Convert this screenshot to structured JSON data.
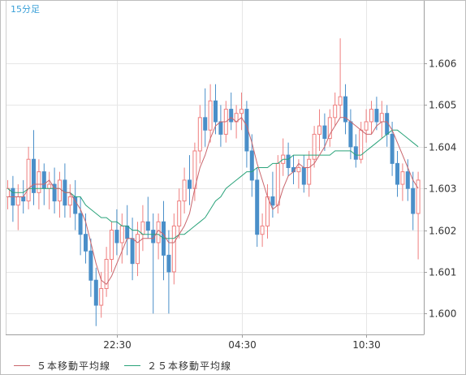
{
  "chart_data": {
    "type": "candlestick",
    "timeframe_label": "15分足",
    "x_tick_labels": [
      {
        "label": "22:30",
        "index": 21
      },
      {
        "label": "04:30",
        "index": 45
      },
      {
        "label": "10:30",
        "index": 69
      }
    ],
    "ylim": [
      1.5995,
      1.6075
    ],
    "yticks": [
      "1.600",
      "1.601",
      "1.602",
      "1.603",
      "1.604",
      "1.605",
      "1.606"
    ],
    "grid": true,
    "colors": {
      "up": "#ef7f7f",
      "down": "#4a8fc9",
      "ma5": "#c9666d",
      "ma25": "#2aa37a"
    },
    "legend_position": "bottom-left",
    "legend": [
      {
        "name": "５本移動平均線",
        "color": "#c9666d"
      },
      {
        "name": "２５本移動平均線",
        "color": "#2aa37a"
      }
    ],
    "candles": [
      [
        1.6028,
        1.6032,
        1.6025,
        1.603
      ],
      [
        1.603,
        1.6033,
        1.6022,
        1.6026
      ],
      [
        1.6026,
        1.6031,
        1.602,
        1.6028
      ],
      [
        1.6028,
        1.6032,
        1.6024,
        1.6027
      ],
      [
        1.6027,
        1.604,
        1.6025,
        1.6037
      ],
      [
        1.6037,
        1.6044,
        1.6026,
        1.6029
      ],
      [
        1.6029,
        1.6037,
        1.6025,
        1.6034
      ],
      [
        1.6034,
        1.6036,
        1.6026,
        1.603
      ],
      [
        1.603,
        1.6034,
        1.6025,
        1.6031
      ],
      [
        1.6031,
        1.6035,
        1.6024,
        1.6027
      ],
      [
        1.6027,
        1.6034,
        1.6023,
        1.6032
      ],
      [
        1.6032,
        1.6036,
        1.6023,
        1.6026
      ],
      [
        1.6026,
        1.6031,
        1.6023,
        1.6028
      ],
      [
        1.6028,
        1.6032,
        1.602,
        1.6024
      ],
      [
        1.6024,
        1.6028,
        1.6014,
        1.6019
      ],
      [
        1.6019,
        1.6024,
        1.6012,
        1.6015
      ],
      [
        1.6015,
        1.6018,
        1.6004,
        1.6008
      ],
      [
        1.6008,
        1.6011,
        1.5997,
        1.6002
      ],
      [
        1.6002,
        1.601,
        1.5999,
        1.6006
      ],
      [
        1.6006,
        1.6016,
        1.6004,
        1.6013
      ],
      [
        1.6013,
        1.6022,
        1.601,
        1.602
      ],
      [
        1.602,
        1.6025,
        1.6014,
        1.6017
      ],
      [
        1.6017,
        1.6024,
        1.6012,
        1.6021
      ],
      [
        1.6021,
        1.6026,
        1.6014,
        1.6018
      ],
      [
        1.6018,
        1.6023,
        1.6008,
        1.6012
      ],
      [
        1.6012,
        1.6022,
        1.6009,
        1.6019
      ],
      [
        1.6019,
        1.6026,
        1.6015,
        1.6022
      ],
      [
        1.6022,
        1.6028,
        1.6018,
        1.602
      ],
      [
        1.602,
        1.6024,
        1.6,
        1.6017
      ],
      [
        1.6017,
        1.6024,
        1.6013,
        1.6022
      ],
      [
        1.6022,
        1.6027,
        1.6008,
        1.6014
      ],
      [
        1.6014,
        1.602,
        1.6,
        1.601
      ],
      [
        1.601,
        1.6024,
        1.6007,
        1.6021
      ],
      [
        1.6021,
        1.603,
        1.6018,
        1.6027
      ],
      [
        1.6027,
        1.6035,
        1.6024,
        1.6032
      ],
      [
        1.6032,
        1.6038,
        1.6026,
        1.603
      ],
      [
        1.603,
        1.6041,
        1.6027,
        1.6039
      ],
      [
        1.6039,
        1.605,
        1.6036,
        1.6047
      ],
      [
        1.6047,
        1.6054,
        1.604,
        1.6044
      ],
      [
        1.6044,
        1.6055,
        1.6041,
        1.6051
      ],
      [
        1.6051,
        1.6055,
        1.6043,
        1.6046
      ],
      [
        1.6046,
        1.605,
        1.604,
        1.6043
      ],
      [
        1.6043,
        1.6051,
        1.6041,
        1.6049
      ],
      [
        1.6049,
        1.6053,
        1.6044,
        1.6046
      ],
      [
        1.6046,
        1.605,
        1.6042,
        1.6048
      ],
      [
        1.6048,
        1.6053,
        1.6044,
        1.6049
      ],
      [
        1.6049,
        1.6051,
        1.6035,
        1.6039
      ],
      [
        1.6039,
        1.6043,
        1.6028,
        1.6032
      ],
      [
        1.6032,
        1.6035,
        1.6016,
        1.6019
      ],
      [
        1.6019,
        1.6024,
        1.6016,
        1.6021
      ],
      [
        1.6021,
        1.6031,
        1.6018,
        1.6028
      ],
      [
        1.6028,
        1.6034,
        1.6023,
        1.6026
      ],
      [
        1.6026,
        1.6038,
        1.6024,
        1.6036
      ],
      [
        1.6036,
        1.6042,
        1.6033,
        1.6038
      ],
      [
        1.6038,
        1.6041,
        1.6033,
        1.6035
      ],
      [
        1.6035,
        1.6038,
        1.6031,
        1.6034
      ],
      [
        1.6034,
        1.6037,
        1.603,
        1.6035
      ],
      [
        1.6035,
        1.6038,
        1.6029,
        1.6031
      ],
      [
        1.6031,
        1.6039,
        1.6028,
        1.6037
      ],
      [
        1.6037,
        1.6045,
        1.6035,
        1.6043
      ],
      [
        1.6043,
        1.6049,
        1.6039,
        1.6045
      ],
      [
        1.6045,
        1.6048,
        1.6039,
        1.6042
      ],
      [
        1.6042,
        1.6049,
        1.604,
        1.6047
      ],
      [
        1.6047,
        1.6053,
        1.6045,
        1.605
      ],
      [
        1.605,
        1.6066,
        1.6047,
        1.6052
      ],
      [
        1.6052,
        1.6055,
        1.6043,
        1.6046
      ],
      [
        1.6046,
        1.6049,
        1.6037,
        1.604
      ],
      [
        1.604,
        1.6043,
        1.6035,
        1.6037
      ],
      [
        1.6037,
        1.6046,
        1.6036,
        1.6044
      ],
      [
        1.6044,
        1.6049,
        1.6041,
        1.6046
      ],
      [
        1.6046,
        1.6051,
        1.6043,
        1.6049
      ],
      [
        1.6049,
        1.6052,
        1.6044,
        1.6046
      ],
      [
        1.6046,
        1.6051,
        1.6042,
        1.6048
      ],
      [
        1.6048,
        1.605,
        1.604,
        1.6043
      ],
      [
        1.6043,
        1.6046,
        1.6033,
        1.6036
      ],
      [
        1.6036,
        1.6039,
        1.6028,
        1.6031
      ],
      [
        1.6031,
        1.6036,
        1.6027,
        1.6034
      ],
      [
        1.6034,
        1.6037,
        1.6027,
        1.603
      ],
      [
        1.603,
        1.6034,
        1.602,
        1.6024
      ],
      [
        1.6024,
        1.6034,
        1.6013,
        1.6032
      ]
    ],
    "ma5": [
      1.6028,
      1.6028,
      1.6028,
      1.6028,
      1.603,
      1.6031,
      1.6031,
      1.6031,
      1.6032,
      1.603,
      1.603,
      1.6029,
      1.6029,
      1.6027,
      1.6025,
      1.6022,
      1.6017,
      1.6012,
      1.6008,
      1.6007,
      1.6009,
      1.6012,
      1.6015,
      1.6018,
      1.6018,
      1.6017,
      1.6018,
      1.6018,
      1.6018,
      1.602,
      1.6019,
      1.6017,
      1.6017,
      1.6019,
      1.6021,
      1.6024,
      1.603,
      1.6035,
      1.6038,
      1.6042,
      1.6045,
      1.6046,
      1.6046,
      1.6047,
      1.6046,
      1.6047,
      1.6045,
      1.6041,
      1.6036,
      1.6032,
      1.6028,
      1.6025,
      1.6026,
      1.603,
      1.6033,
      1.6034,
      1.6036,
      1.6035,
      1.6035,
      1.6036,
      1.6038,
      1.604,
      1.6043,
      1.6045,
      1.6047,
      1.6047,
      1.6046,
      1.6045,
      1.6044,
      1.6043,
      1.6043,
      1.6045,
      1.6046,
      1.6046,
      1.6044,
      1.6041,
      1.6038,
      1.6035,
      1.6032,
      1.603
    ],
    "ma25": [
      1.603,
      1.6029,
      1.6029,
      1.6029,
      1.603,
      1.603,
      1.603,
      1.603,
      1.603,
      1.603,
      1.603,
      1.6029,
      1.6029,
      1.6028,
      1.6028,
      1.6026,
      1.6025,
      1.6024,
      1.6023,
      1.6023,
      1.6022,
      1.6022,
      1.6021,
      1.6021,
      1.602,
      1.602,
      1.6019,
      1.6019,
      1.6019,
      1.6019,
      1.6018,
      1.6018,
      1.6018,
      1.6019,
      1.6019,
      1.602,
      1.6021,
      1.6022,
      1.6023,
      1.6025,
      1.6027,
      1.6028,
      1.603,
      1.6031,
      1.6032,
      1.6033,
      1.6034,
      1.6034,
      1.6035,
      1.6035,
      1.6035,
      1.6036,
      1.6036,
      1.6037,
      1.6037,
      1.6038,
      1.6038,
      1.6038,
      1.6038,
      1.6038,
      1.6038,
      1.6038,
      1.6038,
      1.6039,
      1.6039,
      1.6039,
      1.6039,
      1.6038,
      1.6038,
      1.6039,
      1.604,
      1.6041,
      1.6042,
      1.6043,
      1.6044,
      1.6044,
      1.6043,
      1.6042,
      1.6041,
      1.604
    ]
  }
}
